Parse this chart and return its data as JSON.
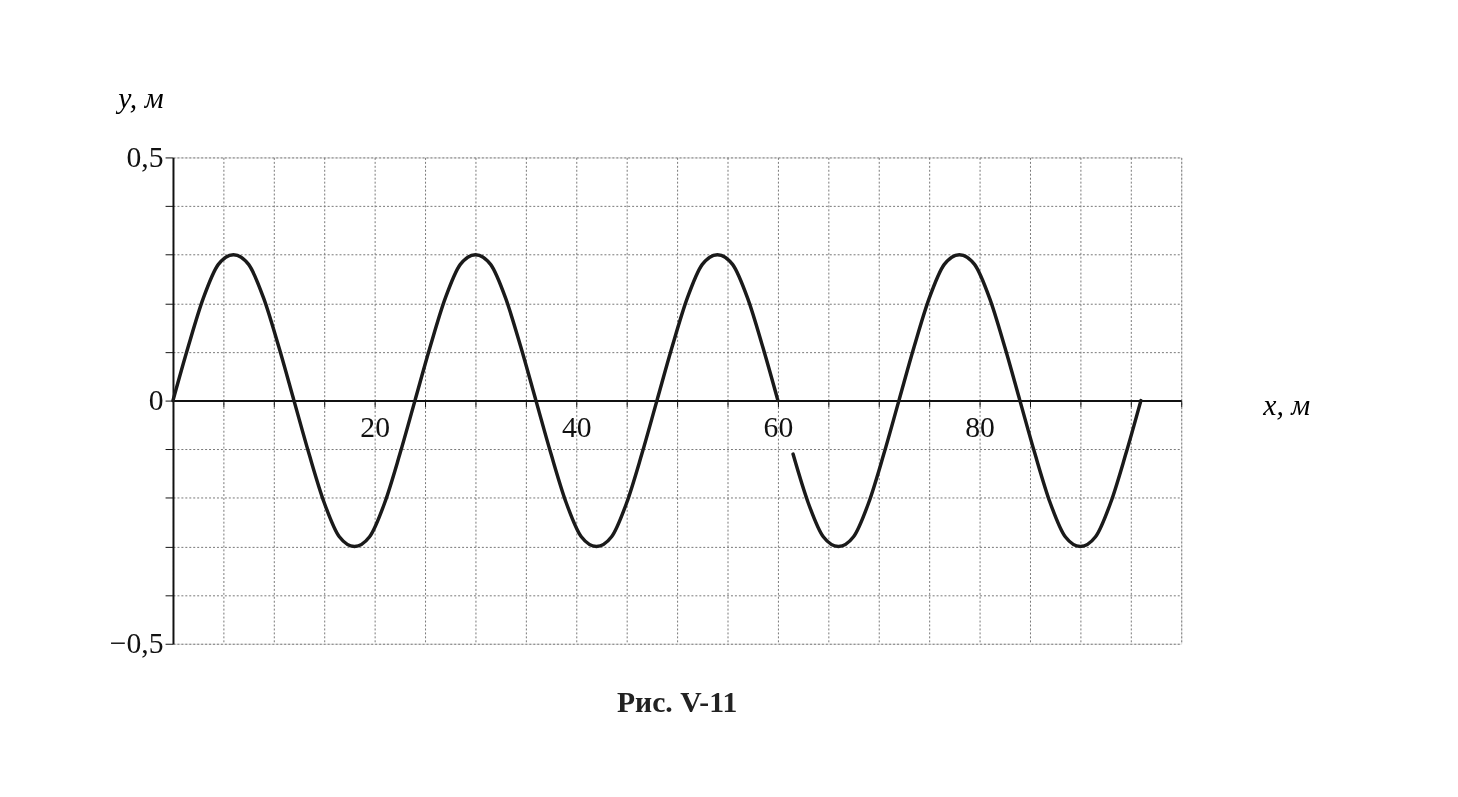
{
  "chart_data": {
    "type": "line",
    "xlabel": "x, м",
    "ylabel": "y, м",
    "annotations": [
      "Рис. V-11"
    ],
    "xlim": [
      0,
      100
    ],
    "ylim": [
      -0.5,
      0.5
    ],
    "xticks": [
      {
        "value": 0,
        "label": null
      },
      {
        "value": 5,
        "label": null
      },
      {
        "value": 10,
        "label": null
      },
      {
        "value": 15,
        "label": null
      },
      20,
      {
        "value": 25,
        "label": null
      },
      {
        "value": 30,
        "label": null
      },
      {
        "value": 35,
        "label": null
      },
      40,
      {
        "value": 45,
        "label": null
      },
      {
        "value": 50,
        "label": null
      },
      {
        "value": 55,
        "label": null
      },
      60,
      {
        "value": 65,
        "label": null
      },
      {
        "value": 70,
        "label": null
      },
      {
        "value": 75,
        "label": null
      },
      80,
      {
        "value": 85,
        "label": null
      },
      {
        "value": 90,
        "label": null
      },
      {
        "value": 95,
        "label": null
      },
      {
        "value": 100,
        "label": null
      }
    ],
    "yticks": [
      {
        "value": -0.5,
        "label": "−0,5"
      },
      {
        "value": -0.4,
        "label": null
      },
      {
        "value": -0.3,
        "label": null
      },
      {
        "value": -0.2,
        "label": null
      },
      {
        "value": -0.1,
        "label": null
      },
      0,
      {
        "value": 0.1,
        "label": null
      },
      {
        "value": 0.2,
        "label": null
      },
      {
        "value": 0.3,
        "label": null
      },
      {
        "value": 0.4,
        "label": null
      },
      {
        "value": 0.5,
        "label": "0,5"
      }
    ],
    "grid": true,
    "line_style": "solid",
    "marker": "none",
    "series": [
      {
        "color": "#1a1a1a",
        "x": [
          0,
          1.5,
          3,
          4.5,
          6,
          7.5,
          9,
          10.5,
          12,
          13.5,
          15,
          16.5,
          18,
          19.5,
          21,
          22.5,
          24,
          25.5,
          27,
          28.5,
          30,
          31.5,
          33,
          34.5,
          36,
          37.5,
          39,
          40.5,
          42,
          43.5,
          45,
          46.5,
          48,
          49.5,
          51,
          52.5,
          54,
          55.5,
          57,
          58.5,
          60,
          60.7,
          61.5,
          63,
          64.5,
          66,
          67.5,
          69,
          70.5,
          72,
          73.5,
          75,
          76.5,
          78,
          79.5,
          81,
          82.5,
          84,
          85.5,
          87,
          88.5,
          90,
          91.5,
          93,
          94.5,
          96
        ],
        "values": [
          0,
          0.11,
          0.21,
          0.28,
          0.3,
          0.28,
          0.21,
          0.11,
          0,
          -0.11,
          -0.21,
          -0.28,
          -0.3,
          -0.28,
          -0.21,
          -0.11,
          0,
          0.11,
          0.21,
          0.28,
          0.3,
          0.28,
          0.21,
          0.11,
          0,
          -0.11,
          -0.21,
          -0.28,
          -0.3,
          -0.28,
          -0.21,
          -0.11,
          0,
          0.11,
          0.21,
          0.28,
          0.3,
          0.28,
          0.21,
          0.11,
          0,
          null,
          -0.11,
          -0.21,
          -0.28,
          -0.3,
          -0.28,
          -0.21,
          -0.11,
          0,
          0.11,
          0.21,
          0.28,
          0.3,
          0.28,
          0.21,
          0.11,
          0,
          -0.11,
          -0.21,
          -0.28,
          -0.3,
          -0.28,
          -0.21,
          -0.11,
          0
        ]
      }
    ]
  }
}
